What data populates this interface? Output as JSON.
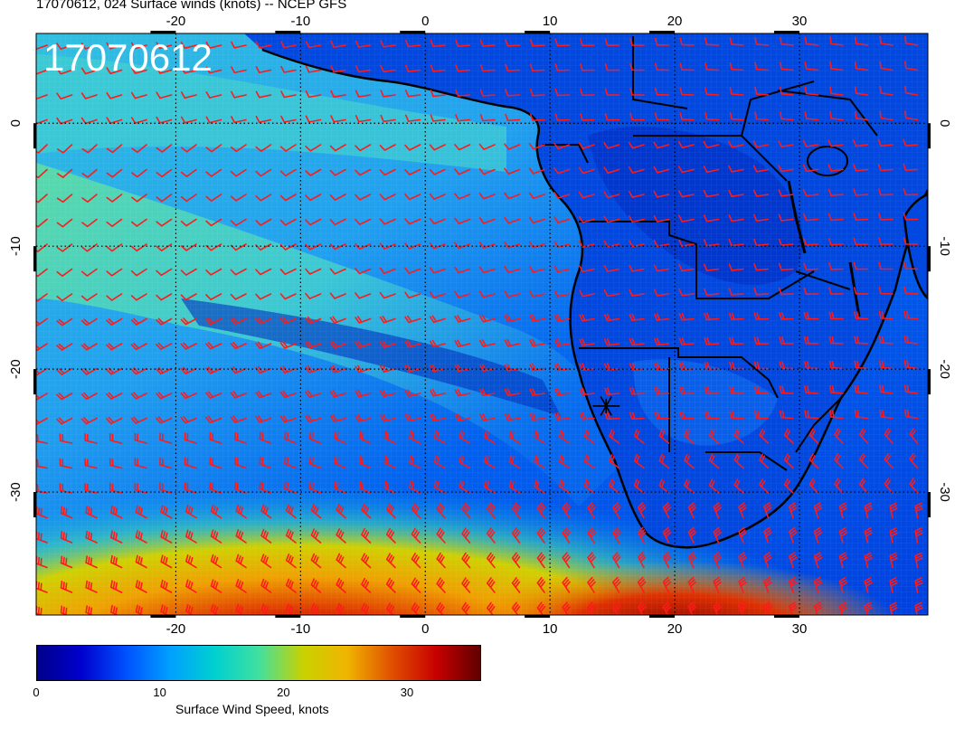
{
  "title": "17070612, 024 Surface winds (knots) -- NCEP GFS",
  "stamp": "17070612",
  "map": {
    "lon_range": [
      -31.2,
      40.3
    ],
    "lat_range": [
      -40,
      7.3
    ],
    "lon_ticks": [
      -20,
      -10,
      0,
      10,
      20,
      30
    ],
    "lat_ticks": [
      0,
      -10,
      -20,
      -30
    ],
    "lon_tick_labels": [
      "-20",
      "-10",
      "0",
      "10",
      "20",
      "30"
    ],
    "lat_tick_labels": [
      "0",
      "-10",
      "-20",
      "-30"
    ],
    "marker": {
      "lon": 14.5,
      "lat": -23.0,
      "symbol": "asterisk"
    },
    "barb_color": "#ff1a1a",
    "coast_color": "#000000",
    "gridline_style": "dotted"
  },
  "colorbar": {
    "label": "Surface Wind Speed, knots",
    "range": [
      0,
      36
    ],
    "ticks": [
      "0",
      "10",
      "20",
      "30"
    ],
    "tick_values": [
      0,
      10,
      20,
      30
    ],
    "colors": [
      "#00008b",
      "#0000cd",
      "#0050ff",
      "#00a0ff",
      "#00d0d0",
      "#40e0a0",
      "#c8d200",
      "#f0b400",
      "#e05000",
      "#c80000",
      "#600000"
    ]
  }
}
